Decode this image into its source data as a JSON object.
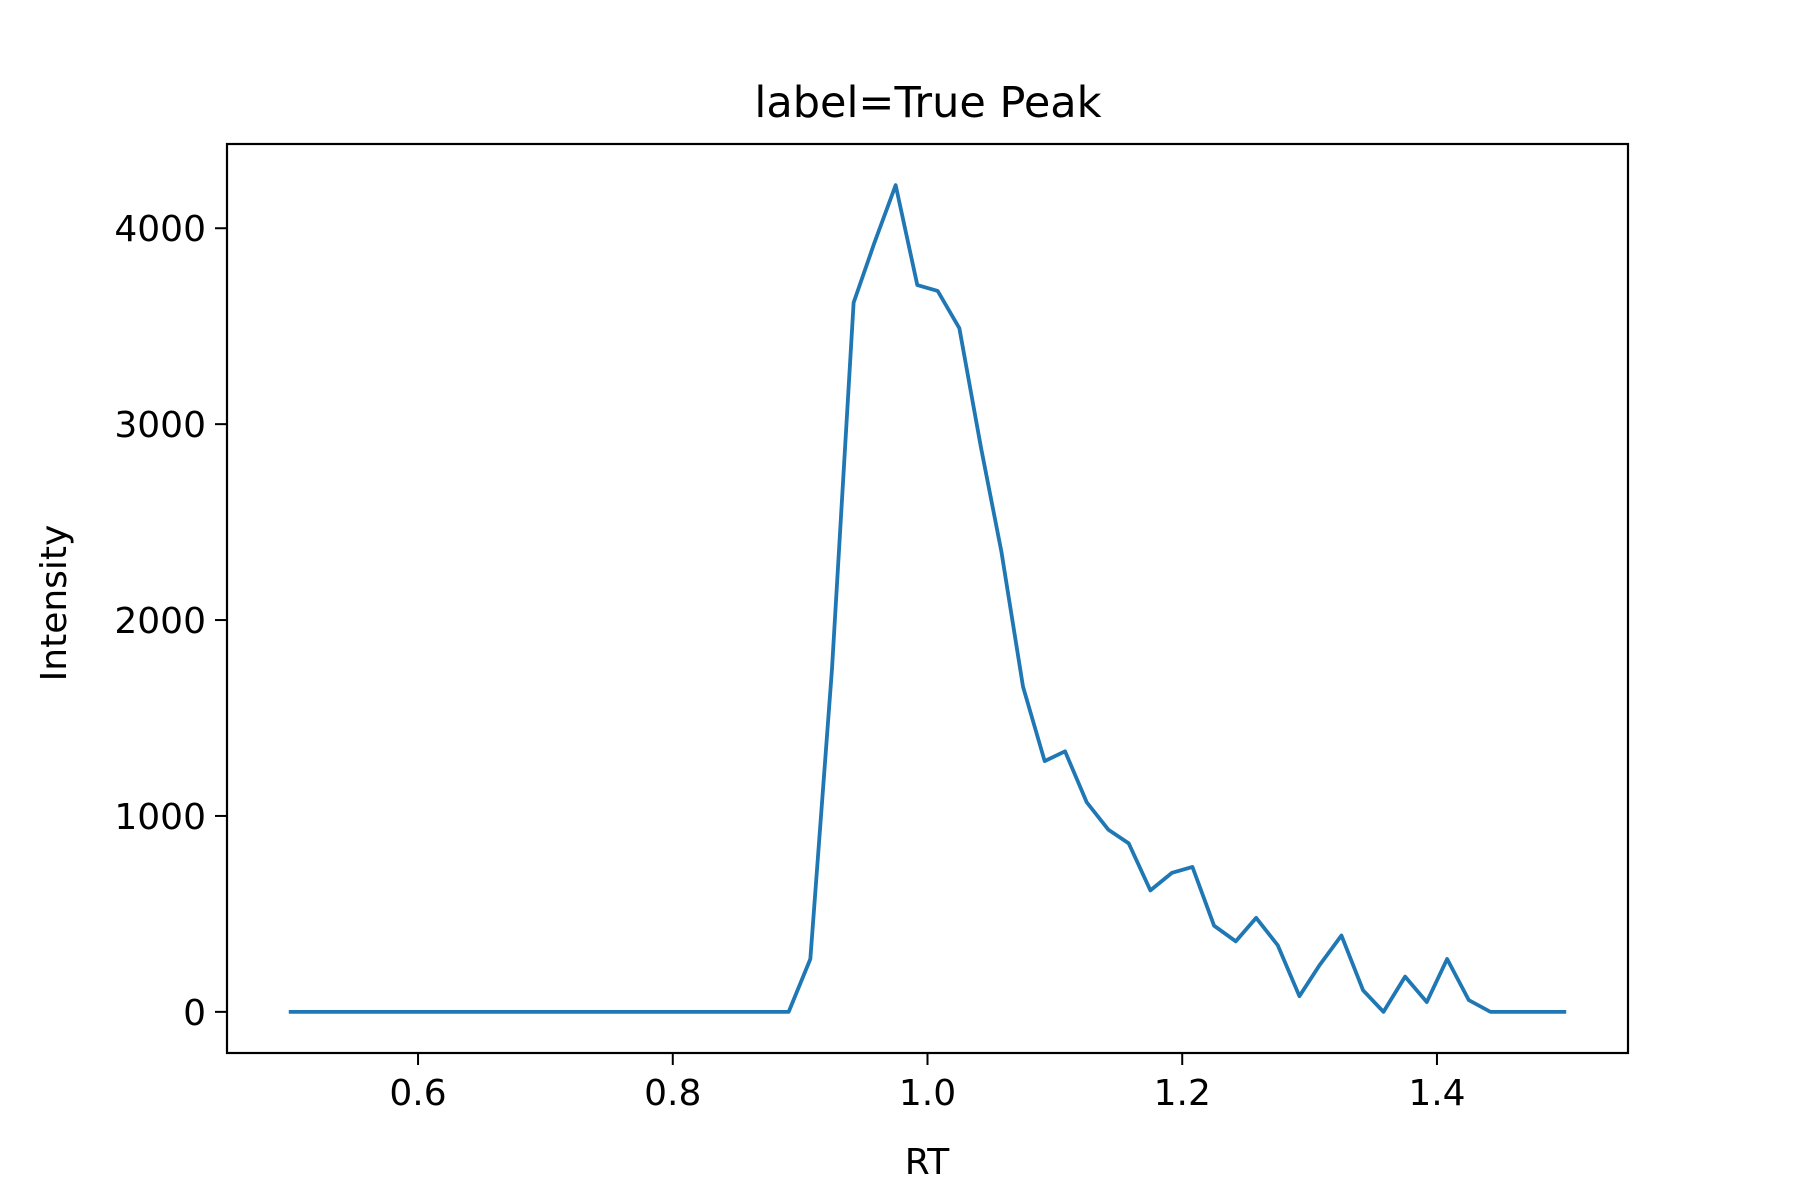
{
  "chart_data": {
    "type": "line",
    "title": "label=True Peak",
    "xlabel": "RT",
    "ylabel": "Intensity",
    "xlim": [
      0.45,
      1.55
    ],
    "ylim": [
      -210,
      4430
    ],
    "grid": false,
    "x_ticks": [
      {
        "value": 0.6,
        "label": "0.6"
      },
      {
        "value": 0.8,
        "label": "0.8"
      },
      {
        "value": 1.0,
        "label": "1.0"
      },
      {
        "value": 1.2,
        "label": "1.2"
      },
      {
        "value": 1.4,
        "label": "1.4"
      }
    ],
    "y_ticks": [
      {
        "value": 0,
        "label": "0"
      },
      {
        "value": 1000,
        "label": "1000"
      },
      {
        "value": 2000,
        "label": "2000"
      },
      {
        "value": 3000,
        "label": "3000"
      },
      {
        "value": 4000,
        "label": "4000"
      }
    ],
    "series": [
      {
        "color": "#1f77b4",
        "x": [
          0.5,
          0.517,
          0.533,
          0.55,
          0.567,
          0.583,
          0.6,
          0.617,
          0.633,
          0.65,
          0.667,
          0.683,
          0.7,
          0.717,
          0.733,
          0.75,
          0.767,
          0.783,
          0.8,
          0.817,
          0.833,
          0.85,
          0.867,
          0.883,
          0.891,
          0.908,
          0.925,
          0.942,
          0.958,
          0.975,
          0.992,
          1.008,
          1.025,
          1.042,
          1.058,
          1.075,
          1.092,
          1.108,
          1.125,
          1.142,
          1.158,
          1.175,
          1.192,
          1.208,
          1.225,
          1.242,
          1.258,
          1.275,
          1.292,
          1.308,
          1.325,
          1.342,
          1.358,
          1.375,
          1.392,
          1.408,
          1.425,
          1.442,
          1.458,
          1.475,
          1.5
        ],
        "y": [
          0,
          0,
          0,
          0,
          0,
          0,
          0,
          0,
          0,
          0,
          0,
          0,
          0,
          0,
          0,
          0,
          0,
          0,
          0,
          0,
          0,
          0,
          0,
          0,
          0,
          270,
          1750,
          3620,
          3920,
          4220,
          3710,
          3680,
          3490,
          2880,
          2350,
          1660,
          1280,
          1330,
          1070,
          930,
          860,
          620,
          710,
          740,
          440,
          360,
          480,
          340,
          80,
          240,
          390,
          110,
          0,
          180,
          50,
          270,
          60,
          0,
          0,
          0,
          0
        ]
      }
    ]
  }
}
